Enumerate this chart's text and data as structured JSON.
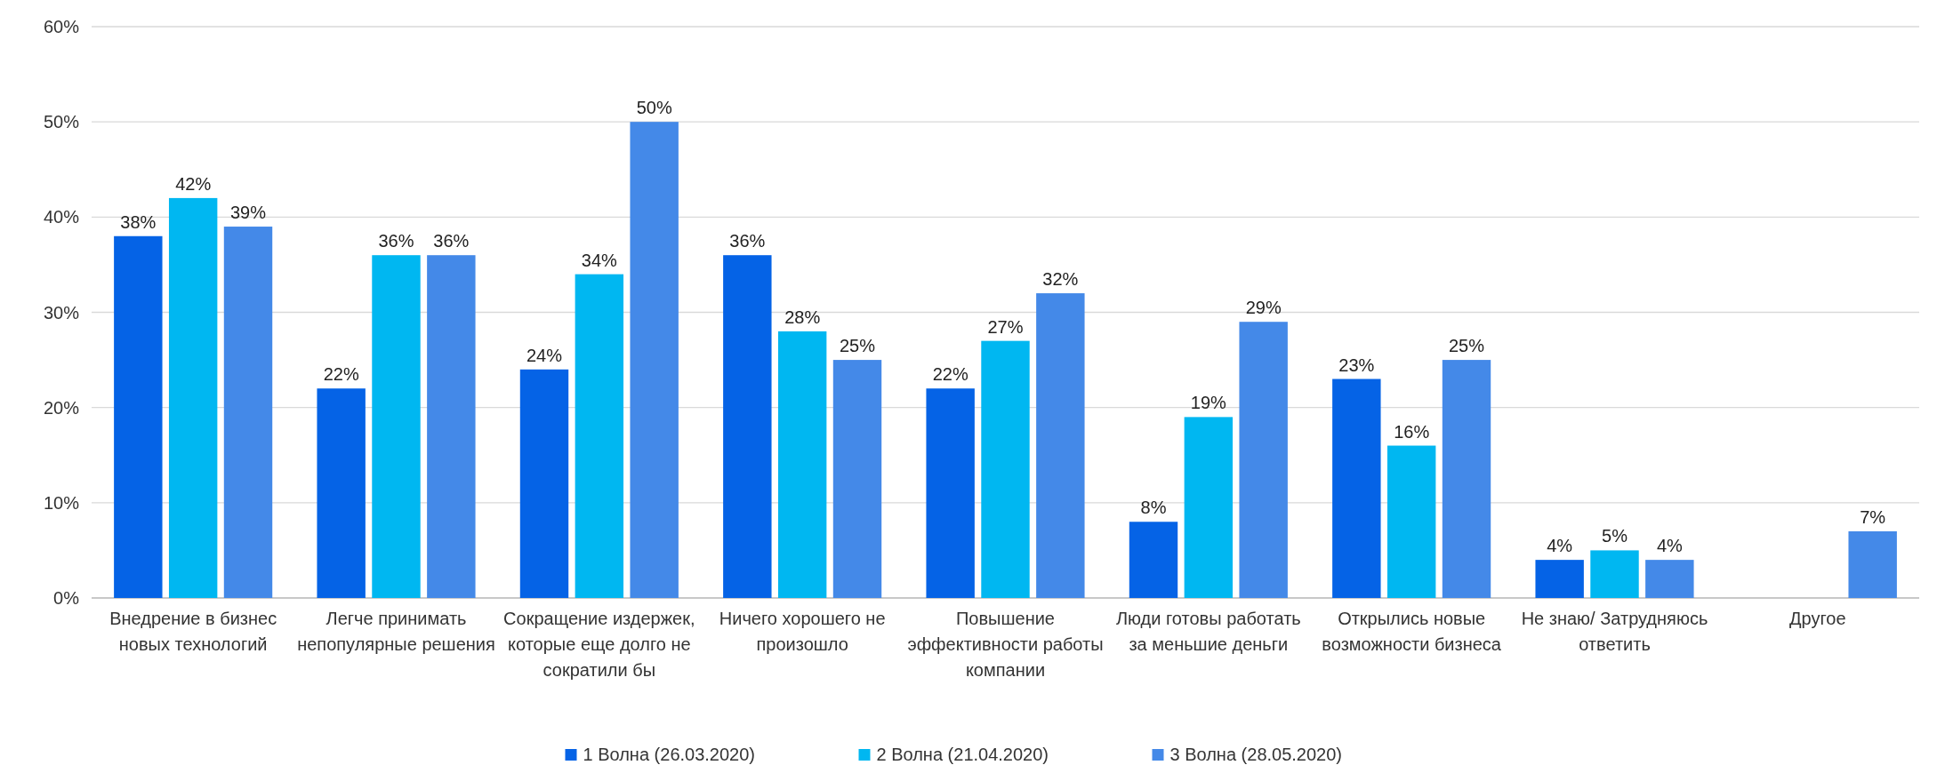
{
  "chart_data": {
    "type": "bar",
    "categories": [
      "Внедрение в бизнес новых технологий",
      "Легче принимать непопулярные решения",
      "Сокращение издержек, которые еще долго не сократили бы",
      "Ничего хорошего не произошло",
      "Повышение эффективности работы компании",
      "Люди готовы работать за меньшие деньги",
      "Открылись новые возможности бизнеса",
      "Не знаю/ Затрудняюсь ответить",
      "Другое"
    ],
    "series": [
      {
        "name": "1 Волна (26.03.2020)",
        "color": "#0563e6",
        "values": [
          38,
          22,
          24,
          36,
          22,
          8,
          23,
          4,
          null
        ],
        "value_labels": [
          "38%",
          "22%",
          "24%",
          "36%",
          "22%",
          "8%",
          "23%",
          "4%",
          null
        ]
      },
      {
        "name": "2 Волна (21.04.2020)",
        "color": "#00b7f1",
        "values": [
          42,
          36,
          34,
          28,
          27,
          19,
          16,
          5,
          null
        ],
        "value_labels": [
          "42%",
          "36%",
          "34%",
          "28%",
          "27%",
          "19%",
          "16%",
          "5%",
          null
        ]
      },
      {
        "name": "3 Волна (28.05.2020)",
        "color": "#4489e8",
        "values": [
          39,
          36,
          50,
          25,
          32,
          29,
          25,
          4,
          7
        ],
        "value_labels": [
          "39%",
          "36%",
          "50%",
          "25%",
          "32%",
          "29%",
          "25%",
          "4%",
          "7%"
        ]
      }
    ],
    "ylim": [
      0,
      60
    ],
    "yticks": [
      {
        "value": 0,
        "label": "0%"
      },
      {
        "value": 10,
        "label": "10%"
      },
      {
        "value": 20,
        "label": "20%"
      },
      {
        "value": 30,
        "label": "30%"
      },
      {
        "value": 40,
        "label": "40%"
      },
      {
        "value": 50,
        "label": "50%"
      },
      {
        "value": 60,
        "label": "60%"
      }
    ],
    "grid": "y",
    "legend": "bottom"
  }
}
